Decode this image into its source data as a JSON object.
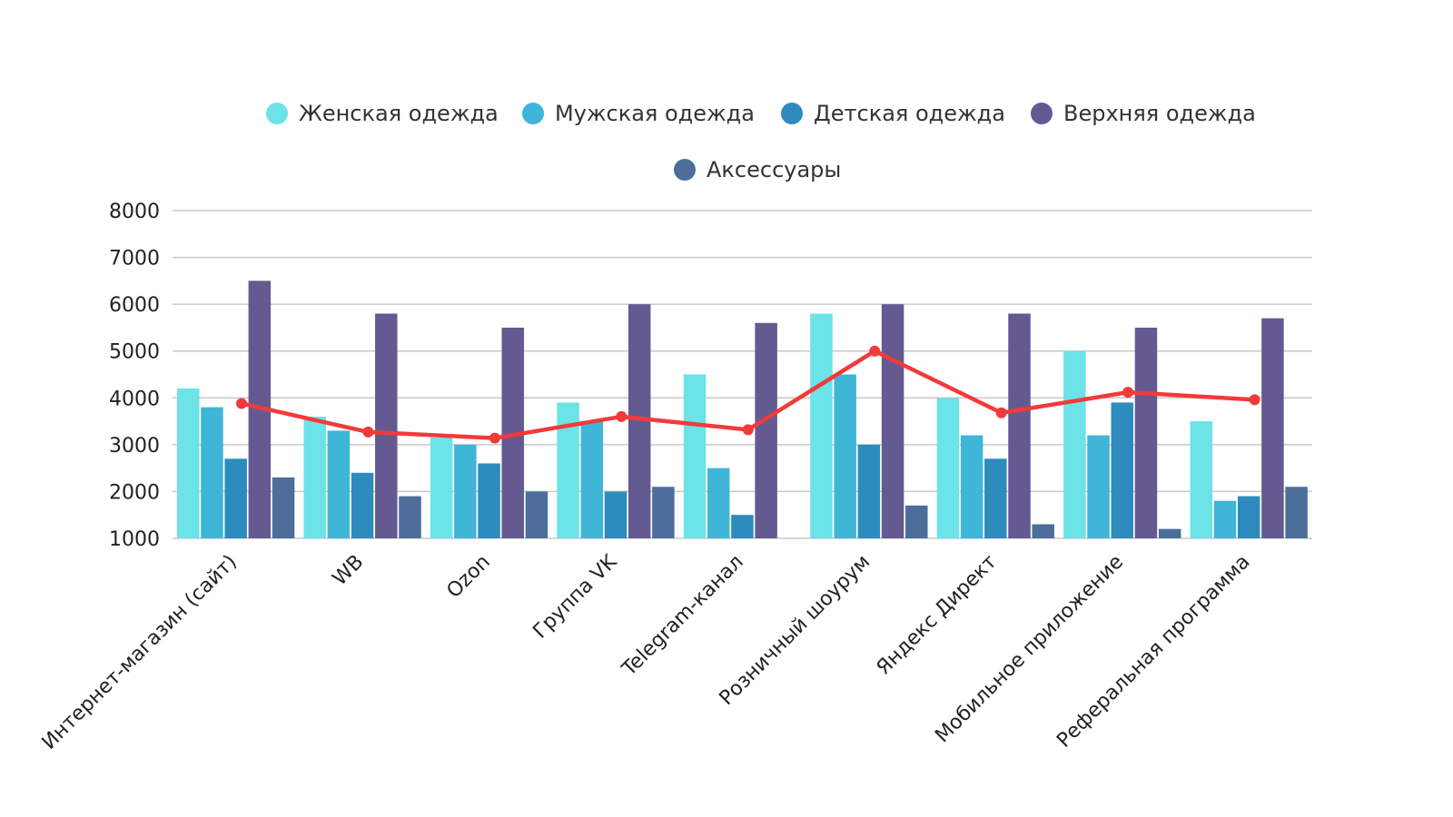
{
  "chart_data": {
    "type": "bar",
    "categories": [
      "Интернет-магазин (сайт)",
      "WB",
      "Ozon",
      "Группа VK",
      "Telegram-канал",
      "Розничный шоурум",
      "Яндекс Директ",
      "Мобильное приложение",
      "Реферальная программа"
    ],
    "series": [
      {
        "name": "Женская одежда",
        "color": "#6be3e7",
        "values": [
          4200,
          3600,
          3150,
          3900,
          4500,
          5800,
          4000,
          5000,
          3500
        ]
      },
      {
        "name": "Мужская одежда",
        "color": "#3fb6d8",
        "values": [
          3800,
          3300,
          3000,
          3500,
          2500,
          4500,
          3200,
          3200,
          1800
        ]
      },
      {
        "name": "Детская одежда",
        "color": "#2e8bbd",
        "values": [
          2700,
          2400,
          2600,
          2000,
          1500,
          3000,
          2700,
          3900,
          1900
        ]
      },
      {
        "name": "Верхняя одежда",
        "color": "#645a91",
        "values": [
          6500,
          5800,
          5500,
          6000,
          5600,
          6000,
          5800,
          5500,
          5700
        ]
      },
      {
        "name": "Аксессуары",
        "color": "#4d6e9a",
        "values": [
          2300,
          1900,
          2000,
          2100,
          1000,
          1700,
          1300,
          1200,
          2100
        ]
      }
    ],
    "line": {
      "color": "#f23a3a",
      "values": [
        3880,
        3270,
        3140,
        3600,
        3320,
        5000,
        3680,
        4120,
        3960
      ]
    },
    "y_ticks": [
      "1000",
      "2000",
      "3000",
      "4000",
      "5000",
      "6000",
      "7000",
      "8000"
    ],
    "ylim": [
      1000,
      8000
    ],
    "grid": true,
    "legend_position": "top-center"
  }
}
